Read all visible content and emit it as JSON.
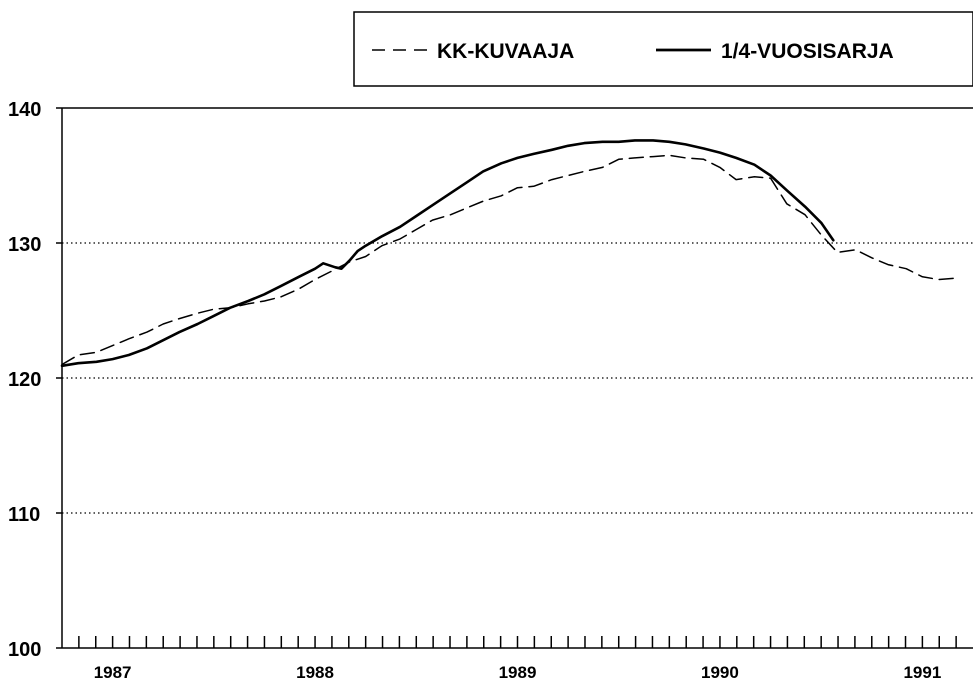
{
  "chart_data": {
    "type": "line",
    "title": "",
    "xlabel": "",
    "ylabel": "",
    "ylim": [
      100,
      140
    ],
    "yticks": [
      100,
      110,
      120,
      130,
      140
    ],
    "xlim": [
      1987.0,
      1991.5
    ],
    "xticks": [
      {
        "label": "1987",
        "x": 1987.25
      },
      {
        "label": "1988",
        "x": 1988.25
      },
      {
        "label": "1989",
        "x": 1989.25
      },
      {
        "label": "1990",
        "x": 1990.25
      },
      {
        "label": "1991",
        "x": 1991.25
      }
    ],
    "grid_values": [
      110,
      120,
      130
    ],
    "legend_position": "top-right",
    "series": [
      {
        "name": "KK-KUVAAJA",
        "style": "dashed",
        "color": "#000000",
        "points": [
          [
            1987.0,
            121.0
          ],
          [
            1987.08,
            121.7
          ],
          [
            1987.17,
            121.9
          ],
          [
            1987.25,
            122.4
          ],
          [
            1987.33,
            122.9
          ],
          [
            1987.42,
            123.4
          ],
          [
            1987.5,
            124.0
          ],
          [
            1987.58,
            124.4
          ],
          [
            1987.67,
            124.8
          ],
          [
            1987.75,
            125.1
          ],
          [
            1987.83,
            125.2
          ],
          [
            1987.92,
            125.5
          ],
          [
            1988.0,
            125.7
          ],
          [
            1988.08,
            126.0
          ],
          [
            1988.17,
            126.6
          ],
          [
            1988.25,
            127.3
          ],
          [
            1988.33,
            127.9
          ],
          [
            1988.42,
            128.6
          ],
          [
            1988.5,
            129.0
          ],
          [
            1988.58,
            129.8
          ],
          [
            1988.67,
            130.3
          ],
          [
            1988.75,
            131.0
          ],
          [
            1988.83,
            131.7
          ],
          [
            1988.92,
            132.1
          ],
          [
            1989.0,
            132.6
          ],
          [
            1989.08,
            133.1
          ],
          [
            1989.17,
            133.5
          ],
          [
            1989.25,
            134.1
          ],
          [
            1989.33,
            134.2
          ],
          [
            1989.42,
            134.7
          ],
          [
            1989.5,
            135.0
          ],
          [
            1989.58,
            135.3
          ],
          [
            1989.67,
            135.6
          ],
          [
            1989.75,
            136.2
          ],
          [
            1989.83,
            136.3
          ],
          [
            1989.92,
            136.4
          ],
          [
            1990.0,
            136.5
          ],
          [
            1990.08,
            136.3
          ],
          [
            1990.17,
            136.2
          ],
          [
            1990.25,
            135.6
          ],
          [
            1990.33,
            134.7
          ],
          [
            1990.42,
            134.9
          ],
          [
            1990.5,
            134.8
          ],
          [
            1990.58,
            132.9
          ],
          [
            1990.67,
            132.1
          ],
          [
            1990.75,
            130.6
          ],
          [
            1990.83,
            129.3
          ],
          [
            1990.92,
            129.5
          ],
          [
            1991.0,
            128.9
          ],
          [
            1991.08,
            128.4
          ],
          [
            1991.17,
            128.1
          ],
          [
            1991.25,
            127.5
          ],
          [
            1991.33,
            127.3
          ],
          [
            1991.42,
            127.4
          ]
        ]
      },
      {
        "name": "1/4-VUOSISARJA",
        "style": "solid",
        "color": "#000000",
        "points": [
          [
            1987.0,
            120.9
          ],
          [
            1987.08,
            121.1
          ],
          [
            1987.17,
            121.2
          ],
          [
            1987.25,
            121.4
          ],
          [
            1987.33,
            121.7
          ],
          [
            1987.42,
            122.2
          ],
          [
            1987.5,
            122.8
          ],
          [
            1987.58,
            123.4
          ],
          [
            1987.67,
            124.0
          ],
          [
            1987.75,
            124.6
          ],
          [
            1987.83,
            125.2
          ],
          [
            1987.92,
            125.7
          ],
          [
            1988.0,
            126.2
          ],
          [
            1988.08,
            126.8
          ],
          [
            1988.17,
            127.5
          ],
          [
            1988.25,
            128.1
          ],
          [
            1988.29,
            128.5
          ],
          [
            1988.35,
            128.2
          ],
          [
            1988.38,
            128.1
          ],
          [
            1988.42,
            128.7
          ],
          [
            1988.46,
            129.4
          ],
          [
            1988.5,
            129.8
          ],
          [
            1988.58,
            130.5
          ],
          [
            1988.67,
            131.2
          ],
          [
            1988.75,
            132.0
          ],
          [
            1988.83,
            132.8
          ],
          [
            1988.92,
            133.7
          ],
          [
            1989.0,
            134.5
          ],
          [
            1989.08,
            135.3
          ],
          [
            1989.17,
            135.9
          ],
          [
            1989.25,
            136.3
          ],
          [
            1989.33,
            136.6
          ],
          [
            1989.42,
            136.9
          ],
          [
            1989.5,
            137.2
          ],
          [
            1989.58,
            137.4
          ],
          [
            1989.67,
            137.5
          ],
          [
            1989.75,
            137.5
          ],
          [
            1989.83,
            137.6
          ],
          [
            1989.92,
            137.6
          ],
          [
            1990.0,
            137.5
          ],
          [
            1990.08,
            137.3
          ],
          [
            1990.17,
            137.0
          ],
          [
            1990.25,
            136.7
          ],
          [
            1990.33,
            136.3
          ],
          [
            1990.42,
            135.8
          ],
          [
            1990.5,
            135.0
          ],
          [
            1990.58,
            133.9
          ],
          [
            1990.67,
            132.7
          ],
          [
            1990.75,
            131.5
          ],
          [
            1990.81,
            130.2
          ]
        ]
      }
    ]
  }
}
